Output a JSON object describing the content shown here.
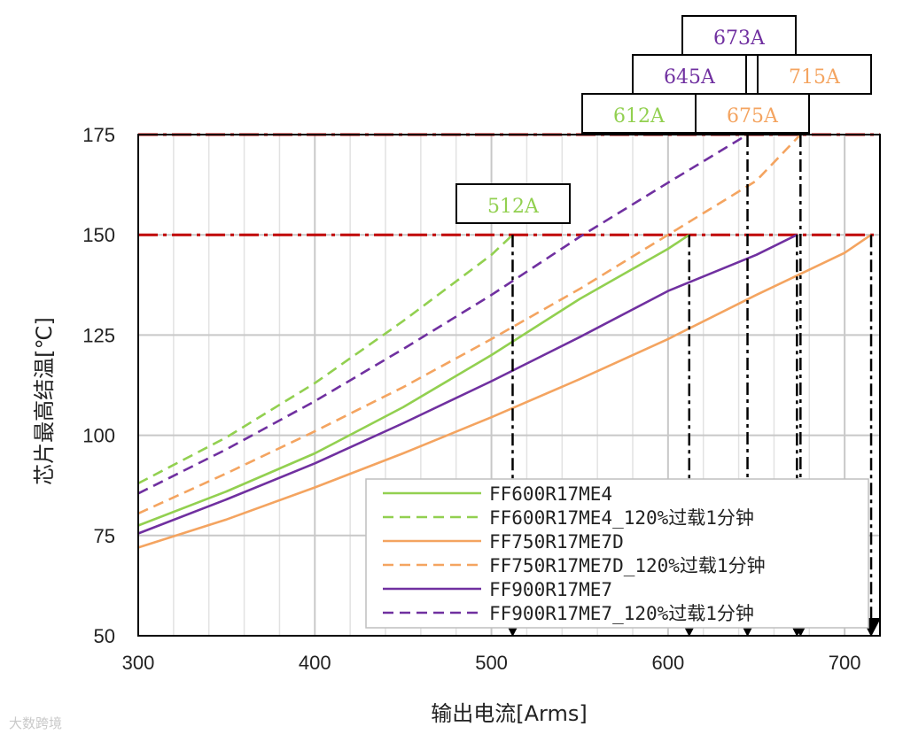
{
  "chart_data": {
    "type": "line",
    "title": "",
    "xlabel": "输出电流[Arms]",
    "ylabel": "芯片最高结温[℃]",
    "xlim": [
      300,
      720
    ],
    "ylim": [
      50,
      175
    ],
    "xticks": [
      300,
      400,
      500,
      600,
      700
    ],
    "yticks": [
      50,
      75,
      100,
      125,
      150,
      175
    ],
    "grid": true,
    "legend_position": "bottom-right",
    "series": [
      {
        "name": "FF600R17ME4",
        "color": "#92d050",
        "dash": "solid",
        "x": [
          300,
          350,
          400,
          450,
          500,
          550,
          600,
          612
        ],
        "y": [
          77.5,
          86,
          95.5,
          107,
          120,
          134,
          146.5,
          150
        ]
      },
      {
        "name": "FF600R17ME4_120%过载1分钟",
        "color": "#92d050",
        "dash": "dashed",
        "x": [
          300,
          350,
          400,
          450,
          500,
          512
        ],
        "y": [
          88,
          99.5,
          113,
          128.5,
          145,
          150
        ]
      },
      {
        "name": "FF750R17ME7D",
        "color": "#f4a460",
        "dash": "solid",
        "x": [
          300,
          350,
          400,
          450,
          500,
          550,
          600,
          650,
          700,
          715
        ],
        "y": [
          72,
          79,
          87,
          95.5,
          104.5,
          114,
          124,
          135,
          145.5,
          150
        ]
      },
      {
        "name": "FF750R17ME7D_120%过载1分钟",
        "color": "#f4a460",
        "dash": "dashed",
        "x": [
          300,
          350,
          400,
          450,
          500,
          550,
          600,
          650,
          675
        ],
        "y": [
          80.5,
          90.5,
          101,
          112,
          124,
          136.5,
          150,
          163.5,
          175
        ]
      },
      {
        "name": "FF900R17ME7",
        "color": "#7030a0",
        "dash": "solid",
        "x": [
          300,
          350,
          400,
          450,
          500,
          550,
          600,
          650,
          673
        ],
        "y": [
          75.5,
          84,
          93,
          103,
          113.5,
          124.5,
          136,
          145,
          150
        ]
      },
      {
        "name": "FF900R17ME7_120%过载1分钟",
        "color": "#7030a0",
        "dash": "dashed",
        "x": [
          300,
          350,
          400,
          450,
          500,
          550,
          600,
          645
        ],
        "y": [
          85.5,
          96.5,
          108.5,
          121.5,
          135,
          149.5,
          163,
          175
        ]
      }
    ],
    "reference_lines": [
      {
        "y": 150,
        "color": "#c00000",
        "style": "dash-dot"
      },
      {
        "y": 175,
        "color": "#c00000",
        "style": "dash-dot"
      }
    ],
    "annotations": [
      {
        "text": "512A",
        "x": 512,
        "y": 150,
        "color": "#92d050"
      },
      {
        "text": "612A",
        "x": 612,
        "y": 150,
        "color": "#92d050"
      },
      {
        "text": "675A",
        "x": 675,
        "y": 175,
        "color": "#f4a460"
      },
      {
        "text": "715A",
        "x": 715,
        "y": 150,
        "color": "#f4a460"
      },
      {
        "text": "645A",
        "x": 645,
        "y": 175,
        "color": "#7030a0"
      },
      {
        "text": "673A",
        "x": 673,
        "y": 150,
        "color": "#7030a0"
      }
    ]
  },
  "watermark": "大数跨境"
}
